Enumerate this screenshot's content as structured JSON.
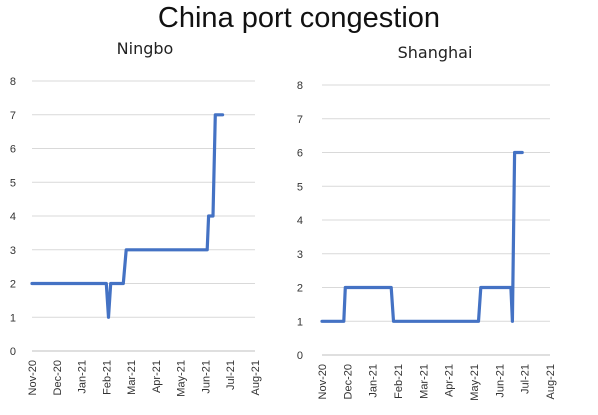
{
  "title": "China port congestion",
  "chart_data": [
    {
      "type": "line",
      "title": "Ningbo",
      "xlabel": "",
      "ylabel": "",
      "ylim": [
        0,
        8
      ],
      "yticks": [
        0,
        1,
        2,
        3,
        4,
        5,
        6,
        7,
        8
      ],
      "xlim": [
        "2020-11-01",
        "2021-08-31"
      ],
      "categories": [
        "Nov-20",
        "Dec-20",
        "Jan-21",
        "Feb-21",
        "Mar-21",
        "Apr-21",
        "May-21",
        "Jun-21",
        "Jul-21",
        "Aug-21"
      ],
      "grid": "horizontal",
      "color": "#4472c4",
      "series": [
        {
          "x": [
            "2020-11-01",
            "2021-02-10",
            "2021-02-13",
            "2021-02-16",
            "2021-03-05",
            "2021-03-09",
            "2021-06-27",
            "2021-06-29",
            "2021-07-05",
            "2021-07-08",
            "2021-07-18"
          ],
          "values": [
            2,
            2,
            1,
            2,
            2,
            3,
            3,
            4,
            4,
            7,
            7
          ]
        }
      ]
    },
    {
      "type": "line",
      "title": "Shanghai",
      "xlabel": "",
      "ylabel": "",
      "ylim": [
        0,
        8
      ],
      "yticks": [
        0,
        1,
        2,
        3,
        4,
        5,
        6,
        7,
        8
      ],
      "xlim": [
        "2020-11-01",
        "2021-08-31"
      ],
      "categories": [
        "Nov-20",
        "Dec-20",
        "Jan-21",
        "Feb-21",
        "Mar-21",
        "Apr-21",
        "May-21",
        "Jun-21",
        "Jul-21",
        "Aug-21"
      ],
      "grid": "horizontal",
      "color": "#4472c4",
      "series": [
        {
          "x": [
            "2020-11-01",
            "2020-11-30",
            "2020-12-02",
            "2021-02-01",
            "2021-02-04",
            "2021-05-28",
            "2021-05-31",
            "2021-07-10",
            "2021-07-12",
            "2021-07-15",
            "2021-07-25"
          ],
          "values": [
            1,
            1,
            2,
            2,
            1,
            1,
            2,
            2,
            1,
            6,
            6
          ]
        }
      ]
    }
  ]
}
